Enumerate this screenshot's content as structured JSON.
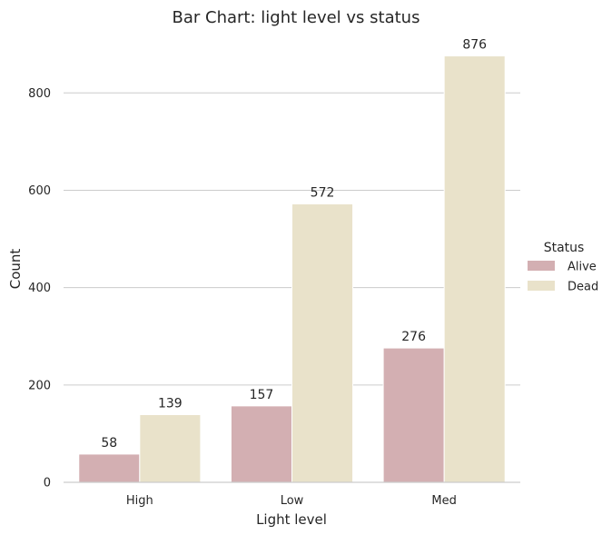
{
  "chart_data": {
    "type": "bar",
    "title": "Bar Chart: light level vs status",
    "xlabel": "Light level",
    "ylabel": "Count",
    "categories": [
      "High",
      "Low",
      "Med"
    ],
    "series": [
      {
        "name": "Alive",
        "values": [
          58,
          157,
          276
        ],
        "color": "#d3afb2"
      },
      {
        "name": "Dead",
        "values": [
          139,
          572,
          876
        ],
        "color": "#e9e2ca"
      }
    ],
    "ylim": [
      0,
      920
    ],
    "yticks": [
      0,
      200,
      400,
      600,
      800
    ],
    "grid": true,
    "legend": {
      "title": "Status",
      "placement": "right"
    }
  }
}
